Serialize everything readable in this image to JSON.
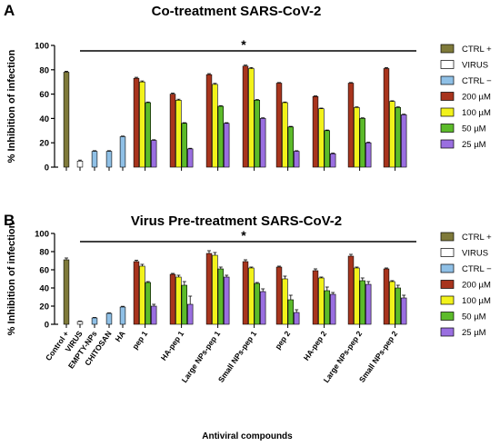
{
  "chart_data": [
    {
      "type": "bar",
      "panel": "A",
      "title": "Co-treatment SARS-CoV-2",
      "ylabel": "% Inhibition of infection",
      "xlabel": "",
      "ylim": [
        0,
        100
      ],
      "yticks": [
        0,
        20,
        40,
        60,
        80,
        100
      ],
      "significance": "*",
      "legend_position": "right",
      "controls": [
        {
          "name": "CTRL +",
          "value": 78,
          "error": 0.8
        },
        {
          "name": "VIRUS",
          "value": 5,
          "error": 0.8
        },
        {
          "name": "CTRL −",
          "value": 13,
          "error": 0.5
        },
        {
          "name": "CTRL −",
          "value": 13,
          "error": 0.5
        },
        {
          "name": "CTRL −",
          "value": 25,
          "error": 0.5
        }
      ],
      "series": [
        {
          "name": "200 µM",
          "values": [
            73,
            60,
            76,
            83,
            69,
            58,
            69,
            81
          ],
          "errors": [
            0.8,
            0.8,
            0.8,
            0.8,
            0.5,
            0.5,
            0.5,
            0.8
          ]
        },
        {
          "name": "100 µM",
          "values": [
            70,
            55,
            68,
            81,
            53,
            48,
            49,
            54
          ],
          "errors": [
            0.8,
            0.8,
            0.8,
            0.8,
            0.5,
            0.5,
            0.5,
            0.5
          ]
        },
        {
          "name": "50 µM",
          "values": [
            53,
            36,
            50,
            55,
            33,
            30,
            40,
            49
          ],
          "errors": [
            0.5,
            0.5,
            0.5,
            0.5,
            0.5,
            0.5,
            0.5,
            0.5
          ]
        },
        {
          "name": "25 µM",
          "values": [
            22,
            15,
            36,
            40,
            13,
            11,
            20,
            43
          ],
          "errors": [
            0.5,
            0.5,
            0.5,
            0.5,
            0.5,
            0.5,
            0.5,
            0.5
          ]
        }
      ]
    },
    {
      "type": "bar",
      "panel": "B",
      "title": "Virus Pre-treatment SARS-CoV-2",
      "ylabel": "% Inhibition of infection",
      "xlabel": "Antiviral compounds",
      "ylim": [
        0,
        100
      ],
      "yticks": [
        0,
        20,
        40,
        60,
        80,
        100
      ],
      "significance": "*",
      "legend_position": "right",
      "controls": [
        {
          "name": "Control +",
          "value": 71,
          "error": 2
        },
        {
          "name": "VIRUS",
          "value": 3,
          "error": 0.5
        },
        {
          "name": "EMPTY-NPs",
          "value": 7,
          "error": 0.5
        },
        {
          "name": "CHITOSAN",
          "value": 12,
          "error": 0.5
        },
        {
          "name": "HA",
          "value": 19,
          "error": 0.8
        }
      ],
      "categories": [
        "pep 1",
        "HA-pep 1",
        "Large NPs-pep 1",
        "Small NPs-pep 1",
        "pep 2",
        "HA-pep 2",
        "Large NPs-pep 2",
        "Small NPs-pep 2"
      ],
      "series": [
        {
          "name": "200 µM",
          "values": [
            69,
            55,
            78,
            69,
            63,
            59,
            75,
            61
          ],
          "errors": [
            1.5,
            1,
            3,
            2,
            1,
            2,
            2,
            1
          ]
        },
        {
          "name": "100 µM",
          "values": [
            64,
            52,
            76,
            62,
            50,
            51,
            62,
            47
          ],
          "errors": [
            2,
            2,
            3,
            1,
            3,
            1,
            1,
            1
          ]
        },
        {
          "name": "50 µM",
          "values": [
            46,
            43,
            61,
            45,
            27,
            37,
            48,
            40
          ],
          "errors": [
            1,
            4,
            2,
            1,
            5,
            4,
            3,
            3
          ]
        },
        {
          "name": "25 µM",
          "values": [
            20,
            22,
            52,
            36,
            13,
            33,
            44,
            29
          ],
          "errors": [
            2,
            9,
            2,
            3,
            3,
            2,
            3,
            3
          ]
        }
      ]
    }
  ],
  "legend": [
    {
      "label": "CTRL +",
      "color": "#7f7a3a"
    },
    {
      "label": "VIRUS",
      "color": "#ffffff"
    },
    {
      "label": "CTRL −",
      "color": "#8fc0e6"
    },
    {
      "label": "200 µM",
      "color": "#a8341d"
    },
    {
      "label": "100 µM",
      "color": "#f2f21b"
    },
    {
      "label": "50 µM",
      "color": "#5cbb2a"
    },
    {
      "label": "25 µM",
      "color": "#9a6fe0"
    }
  ],
  "control_colors": [
    "#7f7a3a",
    "#ffffff",
    "#8fc0e6",
    "#8fc0e6",
    "#8fc0e6"
  ],
  "series_colors": [
    "#a8341d",
    "#f2f21b",
    "#5cbb2a",
    "#9a6fe0"
  ]
}
